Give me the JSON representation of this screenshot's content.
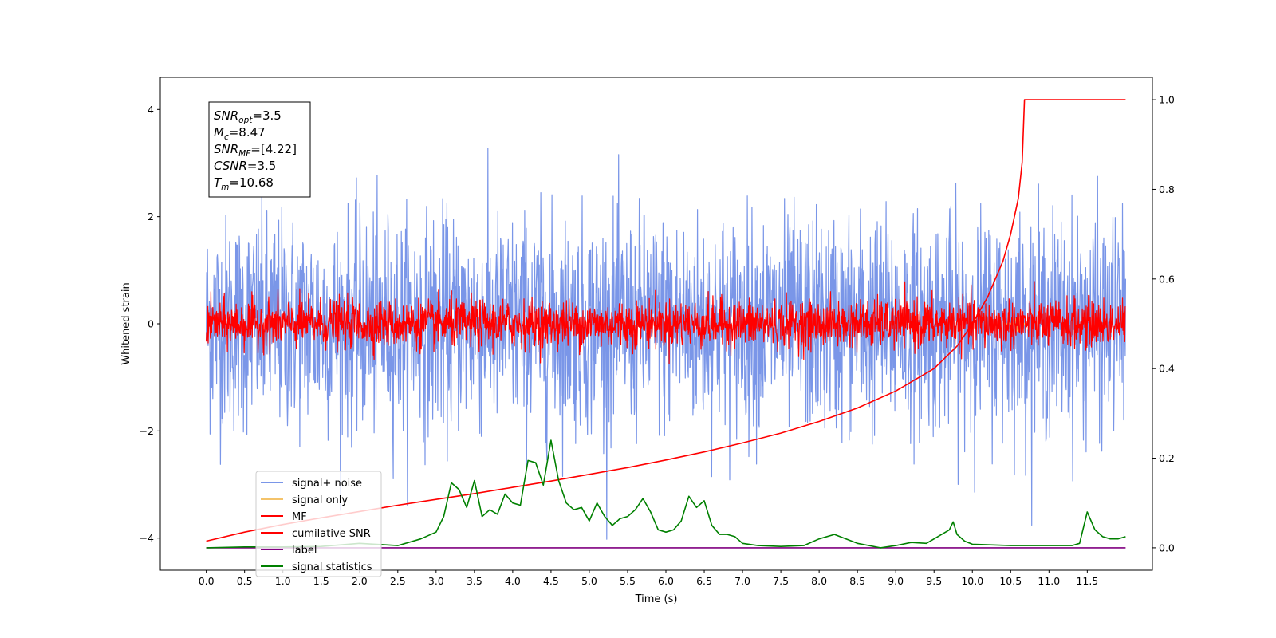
{
  "chart_data": {
    "type": "line",
    "xlabel": "Time (s)",
    "ylabel": "Whitened strain",
    "xlim": [
      -0.6,
      12.35
    ],
    "ylim": [
      -4.6,
      4.6
    ],
    "y2lim": [
      -0.05,
      1.05
    ],
    "xticks": [
      "0.0",
      "0.5",
      "1.0",
      "1.5",
      "2.0",
      "2.5",
      "3.0",
      "3.5",
      "4.0",
      "4.5",
      "5.0",
      "5.5",
      "6.0",
      "6.5",
      "7.0",
      "7.5",
      "8.0",
      "8.5",
      "9.0",
      "9.5",
      "10.0",
      "10.5",
      "11.0",
      "11.5"
    ],
    "yticks": [
      "4",
      "2",
      "0",
      "−2",
      "−4"
    ],
    "y2ticks": [
      "1.0",
      "0.8",
      "0.6",
      "0.4",
      "0.2",
      "0.0"
    ],
    "legend_position": "lower-left",
    "info_box": {
      "lines": [
        {
          "var": "SNR",
          "sub": "opt",
          "value": "=3.5"
        },
        {
          "var": "M",
          "sub": "c",
          "value": "=8.47"
        },
        {
          "var": "SNR",
          "sub": "MF",
          "value": "=[4.22]"
        },
        {
          "var": "CSNR",
          "sub": "",
          "value": "=3.5"
        },
        {
          "var": "T",
          "sub": "m",
          "value": "=10.68"
        }
      ]
    },
    "series": [
      {
        "name": "signal+ noise",
        "color": "#7a96e8",
        "axis": "left",
        "kind": "noise",
        "std": 1.0
      },
      {
        "name": "signal only",
        "color": "#f4c36a",
        "axis": "left",
        "kind": "signal"
      },
      {
        "name": "MF",
        "color": "#ff0000",
        "axis": "left",
        "kind": "noise",
        "std": 0.22
      },
      {
        "name": "cumilative SNR",
        "color": "#ff0000",
        "axis": "right",
        "x": [
          0.0,
          0.5,
          1.0,
          1.5,
          2.0,
          2.5,
          3.0,
          3.5,
          4.0,
          4.5,
          5.0,
          5.5,
          6.0,
          6.5,
          7.0,
          7.5,
          8.0,
          8.5,
          9.0,
          9.5,
          9.8,
          10.0,
          10.2,
          10.4,
          10.5,
          10.6,
          10.65,
          10.68,
          12.0
        ],
        "values": [
          0.015,
          0.035,
          0.052,
          0.067,
          0.081,
          0.095,
          0.108,
          0.121,
          0.135,
          0.149,
          0.164,
          0.179,
          0.196,
          0.214,
          0.234,
          0.256,
          0.282,
          0.312,
          0.35,
          0.4,
          0.45,
          0.5,
          0.56,
          0.64,
          0.7,
          0.78,
          0.86,
          1.0,
          1.0
        ]
      },
      {
        "name": "label",
        "color": "#800080",
        "axis": "right",
        "x": [
          0.0,
          12.0
        ],
        "values": [
          0.0,
          0.0
        ]
      },
      {
        "name": "signal statistics",
        "color": "#008000",
        "axis": "right",
        "x": [
          0.0,
          0.5,
          1.0,
          1.5,
          2.0,
          2.5,
          2.8,
          3.0,
          3.1,
          3.2,
          3.3,
          3.4,
          3.5,
          3.6,
          3.7,
          3.8,
          3.9,
          4.0,
          4.1,
          4.2,
          4.3,
          4.4,
          4.5,
          4.6,
          4.7,
          4.8,
          4.9,
          5.0,
          5.1,
          5.2,
          5.3,
          5.4,
          5.5,
          5.6,
          5.7,
          5.8,
          5.9,
          6.0,
          6.1,
          6.2,
          6.3,
          6.4,
          6.5,
          6.6,
          6.7,
          6.8,
          6.9,
          7.0,
          7.2,
          7.5,
          7.8,
          8.0,
          8.2,
          8.5,
          8.8,
          9.0,
          9.2,
          9.4,
          9.5,
          9.7,
          9.75,
          9.8,
          9.9,
          10.0,
          10.5,
          11.0,
          11.3,
          11.4,
          11.5,
          11.6,
          11.7,
          11.8,
          11.9,
          12.0
        ],
        "values": [
          0.0,
          0.002,
          0.002,
          0.003,
          0.01,
          0.005,
          0.02,
          0.035,
          0.07,
          0.145,
          0.13,
          0.09,
          0.15,
          0.07,
          0.085,
          0.075,
          0.12,
          0.1,
          0.095,
          0.195,
          0.19,
          0.14,
          0.24,
          0.15,
          0.1,
          0.085,
          0.09,
          0.06,
          0.1,
          0.07,
          0.05,
          0.065,
          0.07,
          0.085,
          0.11,
          0.08,
          0.04,
          0.035,
          0.04,
          0.06,
          0.115,
          0.09,
          0.105,
          0.05,
          0.03,
          0.03,
          0.025,
          0.01,
          0.005,
          0.003,
          0.005,
          0.02,
          0.03,
          0.01,
          0.0,
          0.005,
          0.012,
          0.01,
          0.02,
          0.04,
          0.058,
          0.03,
          0.015,
          0.008,
          0.005,
          0.005,
          0.005,
          0.01,
          0.08,
          0.04,
          0.025,
          0.02,
          0.02,
          0.025
        ]
      }
    ]
  }
}
